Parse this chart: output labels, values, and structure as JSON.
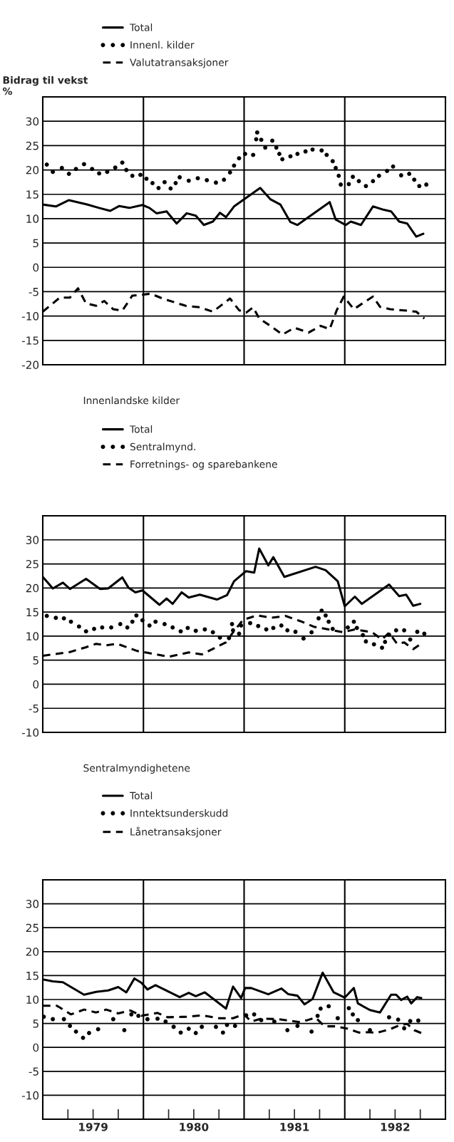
{
  "chart_data": [
    {
      "type": "line",
      "ylabel": "Bidrag til vekst\n%",
      "xlim": [
        1979,
        1983
      ],
      "ylim": [
        -20,
        35
      ],
      "yticks": [
        -20,
        -15,
        -10,
        -5,
        0,
        5,
        10,
        15,
        20,
        25,
        30
      ],
      "grid": "y",
      "legend": "top",
      "tick_labels": "y",
      "ref_lines": [
        {
          "axis": "x",
          "value": 1980
        },
        {
          "axis": "x",
          "value": 1981
        },
        {
          "axis": "x",
          "value": 1982
        }
      ],
      "series": [
        {
          "name": "Total",
          "type": "line",
          "line_style": "solid",
          "color": "#000000",
          "x": [
            1979.0,
            1979.13,
            1979.26,
            1979.44,
            1979.56,
            1979.67,
            1979.76,
            1979.86,
            1979.99,
            1980.06,
            1980.13,
            1980.23,
            1980.33,
            1980.43,
            1980.52,
            1980.6,
            1980.69,
            1980.76,
            1980.82,
            1980.9,
            1981.16,
            1981.26,
            1981.36,
            1981.46,
            1981.53,
            1981.85,
            1981.91,
            1982.01,
            1982.06,
            1982.16,
            1982.28,
            1982.39,
            1982.46,
            1982.54,
            1982.62,
            1982.71,
            1982.78
          ],
          "values": [
            12.9,
            12.5,
            13.8,
            12.9,
            12.2,
            11.6,
            12.6,
            12.2,
            12.8,
            12.2,
            11.1,
            11.5,
            9.0,
            11.1,
            10.6,
            8.7,
            9.4,
            11.2,
            10.3,
            12.5,
            16.3,
            14.0,
            12.9,
            9.3,
            8.7,
            13.4,
            9.8,
            8.7,
            9.4,
            8.7,
            12.5,
            11.8,
            11.5,
            9.4,
            9.0,
            6.3,
            6.9
          ]
        },
        {
          "name": "Innenl. kilder",
          "type": "scatter",
          "marker": "circle",
          "color": "#000000",
          "x": [
            1979.04,
            1979.1,
            1979.19,
            1979.26,
            1979.33,
            1979.41,
            1979.49,
            1979.56,
            1979.64,
            1979.72,
            1979.79,
            1979.83,
            1979.89,
            1979.97,
            1980.03,
            1980.09,
            1980.15,
            1980.21,
            1980.27,
            1980.32,
            1980.36,
            1980.45,
            1980.54,
            1980.63,
            1980.72,
            1980.8,
            1980.86,
            1980.9,
            1980.95,
            1981.01,
            1981.09,
            1981.13,
            1981.12,
            1981.17,
            1981.21,
            1981.28,
            1981.32,
            1981.35,
            1981.38,
            1981.46,
            1981.53,
            1981.61,
            1981.68,
            1981.77,
            1981.82,
            1981.88,
            1981.91,
            1981.94,
            1981.96,
            1982.04,
            1982.08,
            1982.14,
            1982.21,
            1982.28,
            1982.34,
            1982.42,
            1982.48,
            1982.56,
            1982.64,
            1982.69,
            1982.74,
            1982.81
          ],
          "values": [
            21.1,
            19.6,
            20.4,
            19.2,
            20.2,
            21.2,
            20.2,
            19.3,
            19.6,
            20.5,
            21.5,
            20.0,
            18.8,
            19.0,
            18.2,
            17.3,
            16.3,
            17.5,
            16.2,
            17.3,
            18.5,
            17.8,
            18.3,
            17.9,
            17.4,
            18.0,
            19.5,
            20.9,
            22.4,
            23.3,
            23.1,
            27.7,
            26.3,
            26.2,
            24.6,
            26.0,
            24.6,
            23.3,
            22.2,
            22.8,
            23.3,
            23.8,
            24.2,
            24.0,
            23.1,
            21.8,
            20.4,
            18.8,
            17.0,
            17.1,
            18.6,
            17.7,
            16.7,
            17.7,
            18.8,
            19.8,
            20.7,
            18.9,
            19.2,
            18.0,
            16.7,
            17.0
          ]
        },
        {
          "name": "Valutatransaksjoner",
          "type": "line",
          "line_style": "dashed",
          "color": "#000000",
          "x": [
            1979.0,
            1979.17,
            1979.27,
            1979.35,
            1979.43,
            1979.53,
            1979.61,
            1979.7,
            1979.79,
            1979.89,
            1980.0,
            1980.07,
            1980.19,
            1980.42,
            1980.56,
            1980.69,
            1980.86,
            1980.95,
            1981.02,
            1981.09,
            1981.15,
            1981.26,
            1981.38,
            1981.5,
            1981.64,
            1981.76,
            1981.85,
            1981.92,
            1981.99,
            1982.02,
            1982.09,
            1982.19,
            1982.28,
            1982.35,
            1982.45,
            1982.62,
            1982.71,
            1982.79
          ],
          "values": [
            -9.1,
            -6.2,
            -6.2,
            -4.3,
            -7.4,
            -7.9,
            -6.9,
            -8.6,
            -8.9,
            -5.8,
            -5.6,
            -5.4,
            -6.4,
            -7.9,
            -8.2,
            -9.1,
            -6.4,
            -8.8,
            -9.3,
            -8.2,
            -10.5,
            -12.0,
            -13.8,
            -12.4,
            -13.4,
            -12.0,
            -12.7,
            -8.8,
            -6.0,
            -6.8,
            -8.6,
            -7.2,
            -6.0,
            -8.1,
            -8.6,
            -8.9,
            -9.1,
            -10.5
          ]
        }
      ]
    },
    {
      "type": "line",
      "title": "Innenlandske kilder",
      "xlim": [
        1979,
        1983
      ],
      "ylim": [
        -10,
        35
      ],
      "yticks": [
        -10,
        -5,
        0,
        5,
        10,
        15,
        20,
        25,
        30
      ],
      "grid": "y",
      "legend": "top",
      "tick_labels": "y",
      "ref_lines": [
        {
          "axis": "x",
          "value": 1980
        },
        {
          "axis": "x",
          "value": 1981
        },
        {
          "axis": "x",
          "value": 1982
        }
      ],
      "series": [
        {
          "name": "Total",
          "type": "line",
          "line_style": "solid",
          "color": "#000000",
          "x": [
            1979.0,
            1979.1,
            1979.2,
            1979.27,
            1979.43,
            1979.57,
            1979.65,
            1979.79,
            1979.85,
            1979.92,
            1979.99,
            1980.16,
            1980.23,
            1980.29,
            1980.38,
            1980.45,
            1980.56,
            1980.73,
            1980.83,
            1980.9,
            1981.02,
            1981.1,
            1981.15,
            1981.24,
            1981.29,
            1981.4,
            1981.71,
            1981.81,
            1981.93,
            1982.0,
            1982.1,
            1982.17,
            1982.44,
            1982.54,
            1982.61,
            1982.68,
            1982.75
          ],
          "values": [
            22.3,
            19.9,
            21.1,
            19.8,
            21.9,
            19.8,
            19.9,
            22.2,
            20.1,
            19.1,
            19.5,
            16.5,
            17.8,
            16.7,
            19.1,
            18.0,
            18.6,
            17.6,
            18.5,
            21.4,
            23.5,
            23.2,
            28.2,
            24.7,
            26.4,
            22.3,
            24.4,
            23.7,
            21.4,
            16.2,
            18.2,
            16.7,
            20.7,
            18.3,
            18.6,
            16.3,
            16.7
          ]
        },
        {
          "name": "Sentralmynd.",
          "type": "scatter",
          "marker": "circle",
          "color": "#000000",
          "x": [
            1979.04,
            1979.13,
            1979.21,
            1979.28,
            1979.36,
            1979.43,
            1979.51,
            1979.59,
            1979.68,
            1979.77,
            1979.84,
            1979.89,
            1979.93,
            1979.99,
            1980.06,
            1980.12,
            1980.21,
            1980.29,
            1980.37,
            1980.44,
            1980.52,
            1980.61,
            1980.69,
            1980.76,
            1980.85,
            1980.88,
            1980.89,
            1980.95,
            1980.97,
            1981.06,
            1981.14,
            1981.22,
            1981.29,
            1981.37,
            1981.43,
            1981.51,
            1981.59,
            1981.67,
            1981.74,
            1981.77,
            1981.81,
            1981.84,
            1981.88,
            1982.03,
            1982.09,
            1982.12,
            1982.18,
            1982.21,
            1982.29,
            1982.37,
            1982.4,
            1982.44,
            1982.51,
            1982.59,
            1982.65,
            1982.72,
            1982.79
          ],
          "values": [
            14.2,
            13.8,
            13.7,
            13.0,
            12.0,
            11.0,
            11.5,
            11.8,
            11.8,
            12.5,
            11.8,
            13.0,
            14.3,
            13.3,
            12.2,
            13.0,
            12.5,
            11.8,
            11.0,
            11.7,
            11.1,
            11.4,
            10.8,
            9.7,
            9.6,
            12.5,
            11.2,
            10.5,
            12.2,
            12.7,
            12.1,
            11.4,
            11.7,
            12.2,
            11.2,
            10.9,
            9.5,
            10.8,
            13.7,
            15.3,
            14.3,
            13.0,
            11.5,
            11.8,
            13.0,
            11.7,
            10.2,
            8.9,
            8.3,
            7.6,
            8.8,
            10.3,
            11.2,
            11.2,
            9.3,
            10.9,
            10.5
          ]
        },
        {
          "name": "Forretnings- og sparebankene",
          "type": "line",
          "line_style": "dashed",
          "color": "#000000",
          "x": [
            1979.0,
            1979.27,
            1979.43,
            1979.53,
            1979.63,
            1979.74,
            1979.94,
            1980.05,
            1980.25,
            1980.45,
            1980.58,
            1980.82,
            1980.88,
            1980.99,
            1981.13,
            1981.27,
            1981.41,
            1981.56,
            1981.7,
            1981.81,
            1981.98,
            1982.1,
            1982.27,
            1982.37,
            1982.44,
            1982.52,
            1982.59,
            1982.68,
            1982.75
          ],
          "values": [
            5.9,
            6.7,
            7.7,
            8.4,
            8.1,
            8.4,
            6.9,
            6.5,
            5.7,
            6.6,
            6.2,
            8.7,
            10.5,
            13.4,
            14.3,
            13.8,
            14.2,
            13.1,
            11.9,
            11.5,
            10.8,
            11.4,
            10.8,
            9.3,
            10.7,
            8.4,
            8.7,
            7.3,
            8.3
          ]
        }
      ]
    },
    {
      "type": "line",
      "title": "Sentralmyndighetene",
      "xlim": [
        1979,
        1983
      ],
      "ylim": [
        -15,
        35
      ],
      "yticks": [
        -10,
        -5,
        0,
        5,
        10,
        15,
        20,
        25,
        30
      ],
      "xticks": [
        {
          "value": 1979.25,
          "label": null
        },
        {
          "value": 1979.5,
          "label": "1979"
        },
        {
          "value": 1979.75,
          "label": null
        },
        {
          "value": 1980.25,
          "label": null
        },
        {
          "value": 1980.5,
          "label": "1980"
        },
        {
          "value": 1980.75,
          "label": null
        },
        {
          "value": 1981.25,
          "label": null
        },
        {
          "value": 1981.5,
          "label": "1981"
        },
        {
          "value": 1981.75,
          "label": null
        },
        {
          "value": 1982.25,
          "label": null
        },
        {
          "value": 1982.5,
          "label": "1982"
        },
        {
          "value": 1982.75,
          "label": null
        }
      ],
      "grid": "y",
      "legend": "top",
      "ref_lines": [
        {
          "axis": "x",
          "value": 1980
        },
        {
          "axis": "x",
          "value": 1981
        },
        {
          "axis": "x",
          "value": 1982
        }
      ],
      "series": [
        {
          "name": "Total",
          "type": "line",
          "line_style": "solid",
          "color": "#000000",
          "x": [
            1979.0,
            1979.1,
            1979.2,
            1979.41,
            1979.53,
            1979.65,
            1979.75,
            1979.83,
            1979.91,
            1979.98,
            1980.04,
            1980.12,
            1980.36,
            1980.45,
            1980.52,
            1980.61,
            1980.82,
            1980.89,
            1980.97,
            1981.01,
            1981.07,
            1981.24,
            1981.37,
            1981.44,
            1981.53,
            1981.6,
            1981.68,
            1981.78,
            1981.89,
            1982.0,
            1982.04,
            1982.09,
            1982.13,
            1982.25,
            1982.35,
            1982.46,
            1982.51,
            1982.56,
            1982.62,
            1982.66,
            1982.72,
            1982.76
          ],
          "values": [
            14.2,
            13.8,
            13.6,
            11.0,
            11.6,
            11.9,
            12.6,
            11.5,
            14.4,
            13.5,
            12.1,
            13.0,
            10.5,
            11.4,
            10.7,
            11.5,
            8.1,
            12.7,
            10.3,
            12.4,
            12.4,
            11.1,
            12.3,
            11.1,
            10.8,
            9.0,
            10.1,
            15.6,
            11.5,
            10.4,
            11.3,
            12.4,
            9.2,
            7.8,
            7.3,
            11.0,
            11.0,
            9.9,
            10.6,
            9.2,
            10.5,
            10.3
          ]
        },
        {
          "name": "Inntektsunderskudd",
          "type": "scatter",
          "marker": "circle",
          "color": "#000000",
          "x": [
            1979.01,
            1979.1,
            1979.21,
            1979.27,
            1979.33,
            1979.4,
            1979.46,
            1979.55,
            1979.7,
            1979.81,
            1979.88,
            1979.95,
            1980.04,
            1980.14,
            1980.22,
            1980.3,
            1980.37,
            1980.45,
            1980.52,
            1980.58,
            1980.72,
            1980.79,
            1980.83,
            1980.91,
            1981.02,
            1981.1,
            1981.17,
            1981.3,
            1981.43,
            1981.53,
            1981.67,
            1981.73,
            1981.76,
            1981.84,
            1981.93,
            1982.04,
            1982.08,
            1982.13,
            1982.25,
            1982.44,
            1982.53,
            1982.59,
            1982.65,
            1982.73
          ],
          "values": [
            6.4,
            5.9,
            5.9,
            4.5,
            3.3,
            2.0,
            3.0,
            3.8,
            5.9,
            3.6,
            6.9,
            6.6,
            5.9,
            6.0,
            5.4,
            4.3,
            3.1,
            3.9,
            3.0,
            4.3,
            4.3,
            3.1,
            4.7,
            4.5,
            6.7,
            6.9,
            5.7,
            5.4,
            3.6,
            4.5,
            3.3,
            6.6,
            8.1,
            8.6,
            6.1,
            8.2,
            6.9,
            5.7,
            3.6,
            6.3,
            5.8,
            4.0,
            5.5,
            5.6
          ]
        },
        {
          "name": "Lånetransaksjoner",
          "type": "line",
          "line_style": "dashed",
          "color": "#000000",
          "x": [
            1979.0,
            1979.14,
            1979.28,
            1979.41,
            1979.53,
            1979.63,
            1979.75,
            1979.87,
            1979.98,
            1980.14,
            1980.24,
            1980.43,
            1980.58,
            1980.75,
            1980.89,
            1981.0,
            1981.07,
            1981.17,
            1981.34,
            1981.54,
            1981.63,
            1981.71,
            1981.8,
            1981.91,
            1982.03,
            1982.14,
            1982.25,
            1982.31,
            1982.38,
            1982.45,
            1982.55,
            1982.62,
            1982.69,
            1982.76
          ],
          "values": [
            8.7,
            8.7,
            6.9,
            7.9,
            7.3,
            7.9,
            7.1,
            7.7,
            6.6,
            7.2,
            6.3,
            6.4,
            6.7,
            6.1,
            6.1,
            6.9,
            5.4,
            6.0,
            5.9,
            5.3,
            5.7,
            6.2,
            4.4,
            4.4,
            3.9,
            3.1,
            3.2,
            3.0,
            3.4,
            3.8,
            4.7,
            4.9,
            3.6,
            3.0
          ]
        }
      ]
    }
  ]
}
